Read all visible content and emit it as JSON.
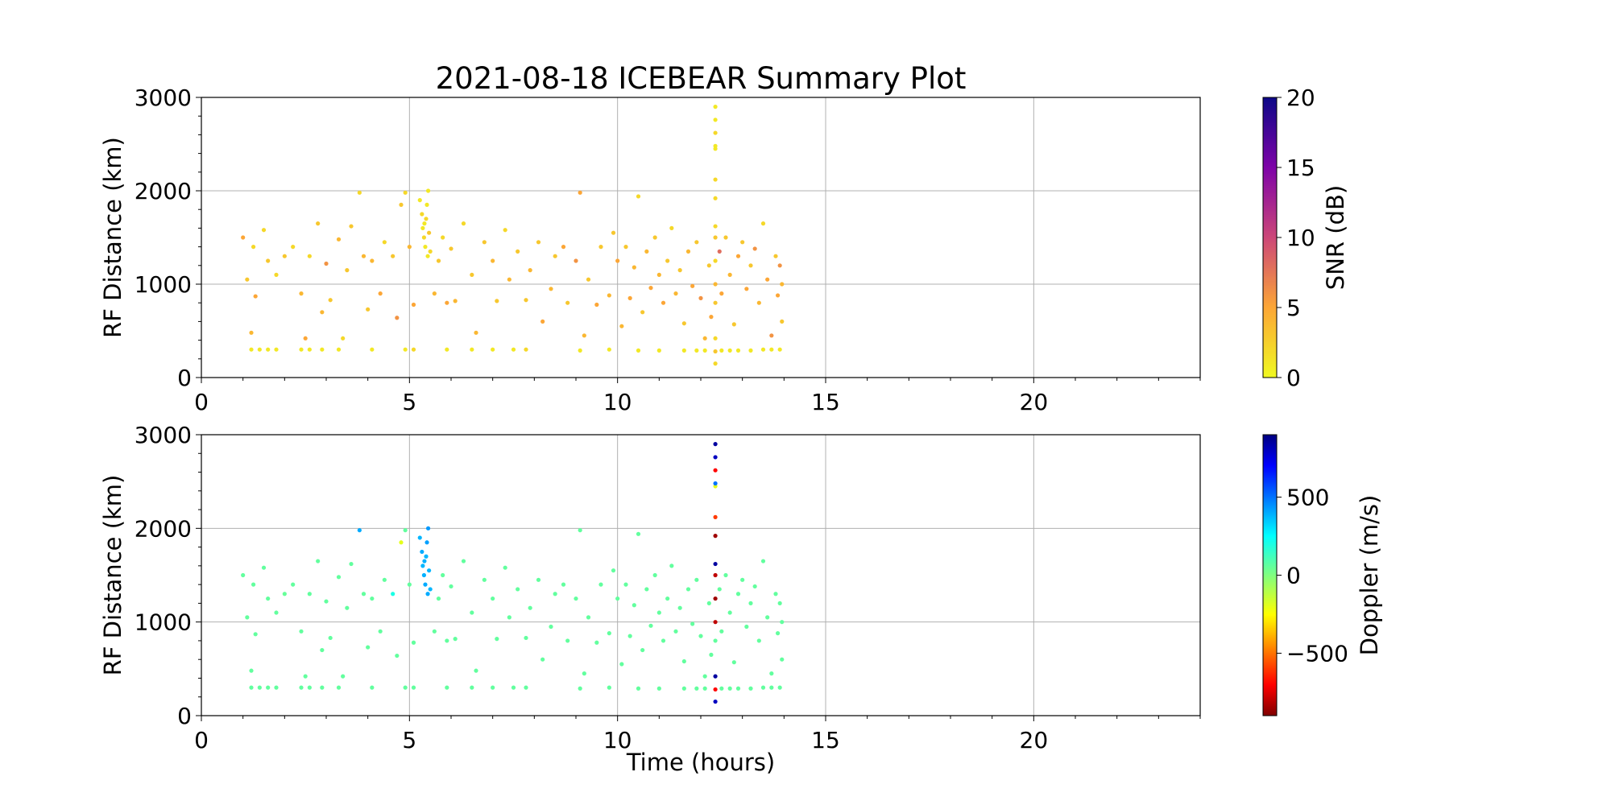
{
  "chart_data": [
    {
      "type": "scatter",
      "title": "2021-08-18 ICEBEAR Summary Plot",
      "xlabel": "",
      "ylabel": "RF Distance (km)",
      "xlim": [
        0,
        24
      ],
      "ylim": [
        0,
        3000
      ],
      "xticks": [
        "0",
        "5",
        "10",
        "15",
        "20"
      ],
      "yticks": [
        "0",
        "1000",
        "2000",
        "3000"
      ],
      "grid": true,
      "color_by": "snr",
      "colormap": "plasma_r",
      "colorbar": {
        "label": "SNR (dB)",
        "range": [
          0,
          20
        ],
        "ticks": [
          "0",
          "5",
          "10",
          "15",
          "20"
        ]
      }
    },
    {
      "type": "scatter",
      "title": "",
      "xlabel": "Time (hours)",
      "ylabel": "RF Distance (km)",
      "xlim": [
        0,
        24
      ],
      "ylim": [
        0,
        3000
      ],
      "xticks": [
        "0",
        "5",
        "10",
        "15",
        "20"
      ],
      "yticks": [
        "0",
        "1000",
        "2000",
        "3000"
      ],
      "grid": true,
      "color_by": "doppler",
      "colormap": "jet",
      "colorbar": {
        "label": "Doppler (m/s)",
        "range": [
          -900,
          900
        ],
        "ticks": [
          "−500",
          "0",
          "500"
        ],
        "tick_values": [
          -500,
          0,
          500
        ]
      }
    }
  ],
  "points_fields": [
    "time_hours",
    "rf_distance_km",
    "snr_db",
    "doppler_ms"
  ],
  "points": [
    [
      1.0,
      1500,
      5,
      60
    ],
    [
      1.1,
      1050,
      3,
      60
    ],
    [
      1.2,
      480,
      4,
      60
    ],
    [
      1.25,
      1400,
      2,
      60
    ],
    [
      1.3,
      870,
      5,
      60
    ],
    [
      1.5,
      1580,
      2,
      60
    ],
    [
      1.6,
      1250,
      3,
      60
    ],
    [
      1.8,
      1100,
      2,
      60
    ],
    [
      2.0,
      1300,
      3,
      50
    ],
    [
      2.2,
      1400,
      2,
      60
    ],
    [
      2.4,
      900,
      4,
      60
    ],
    [
      2.5,
      420,
      5,
      60
    ],
    [
      2.6,
      1300,
      2,
      60
    ],
    [
      2.8,
      1650,
      3,
      60
    ],
    [
      2.9,
      700,
      4,
      60
    ],
    [
      3.0,
      1220,
      6,
      60
    ],
    [
      3.1,
      830,
      3,
      60
    ],
    [
      3.3,
      1480,
      4,
      60
    ],
    [
      3.4,
      420,
      2,
      60
    ],
    [
      3.5,
      1150,
      3,
      60
    ],
    [
      3.6,
      1620,
      3,
      60
    ],
    [
      3.8,
      1980,
      2,
      400
    ],
    [
      3.9,
      1300,
      4,
      60
    ],
    [
      4.0,
      730,
      3,
      60
    ],
    [
      4.1,
      1250,
      4,
      60
    ],
    [
      4.3,
      900,
      5,
      60
    ],
    [
      4.4,
      1450,
      2,
      60
    ],
    [
      4.6,
      1300,
      3,
      200
    ],
    [
      4.7,
      640,
      6,
      60
    ],
    [
      4.8,
      1850,
      3,
      -200
    ],
    [
      4.9,
      1980,
      2,
      60
    ],
    [
      5.0,
      1400,
      4,
      60
    ],
    [
      5.1,
      780,
      5,
      60
    ],
    [
      5.25,
      1900,
      1,
      380
    ],
    [
      5.3,
      1750,
      2,
      400
    ],
    [
      5.32,
      1600,
      1,
      380
    ],
    [
      5.35,
      1500,
      2,
      390
    ],
    [
      5.38,
      1400,
      1,
      400
    ],
    [
      5.4,
      1700,
      2,
      380
    ],
    [
      5.42,
      1850,
      1,
      420
    ],
    [
      5.45,
      2000,
      1,
      430
    ],
    [
      5.47,
      1550,
      3,
      380
    ],
    [
      5.5,
      1350,
      2,
      380
    ],
    [
      5.44,
      1300,
      1,
      400
    ],
    [
      5.36,
      1650,
      1,
      390
    ],
    [
      5.6,
      900,
      4,
      60
    ],
    [
      5.7,
      1250,
      3,
      60
    ],
    [
      5.8,
      1500,
      2,
      60
    ],
    [
      5.9,
      800,
      5,
      60
    ],
    [
      6.0,
      1380,
      3,
      60
    ],
    [
      6.1,
      820,
      4,
      60
    ],
    [
      6.3,
      1650,
      2,
      60
    ],
    [
      6.5,
      1100,
      3,
      60
    ],
    [
      6.6,
      480,
      4,
      60
    ],
    [
      6.8,
      1450,
      3,
      60
    ],
    [
      7.0,
      1250,
      4,
      60
    ],
    [
      7.1,
      820,
      3,
      60
    ],
    [
      7.3,
      1580,
      2,
      60
    ],
    [
      7.4,
      1050,
      4,
      60
    ],
    [
      7.6,
      1350,
      3,
      60
    ],
    [
      7.8,
      830,
      3,
      60
    ],
    [
      7.9,
      1150,
      4,
      60
    ],
    [
      8.1,
      1450,
      3,
      60
    ],
    [
      8.2,
      600,
      5,
      60
    ],
    [
      8.4,
      950,
      4,
      60
    ],
    [
      8.5,
      1300,
      3,
      60
    ],
    [
      8.7,
      1400,
      5,
      60
    ],
    [
      8.8,
      800,
      3,
      60
    ],
    [
      9.0,
      1250,
      6,
      60
    ],
    [
      9.1,
      1980,
      5,
      60
    ],
    [
      9.2,
      450,
      4,
      60
    ],
    [
      9.3,
      1050,
      3,
      60
    ],
    [
      9.5,
      780,
      5,
      60
    ],
    [
      9.6,
      1400,
      3,
      60
    ],
    [
      9.8,
      880,
      4,
      60
    ],
    [
      9.9,
      1550,
      3,
      60
    ],
    [
      10.0,
      1250,
      5,
      60
    ],
    [
      10.1,
      550,
      4,
      60
    ],
    [
      10.2,
      1400,
      3,
      60
    ],
    [
      10.3,
      850,
      5,
      60
    ],
    [
      10.4,
      1180,
      4,
      60
    ],
    [
      10.5,
      1940,
      2,
      60
    ],
    [
      10.6,
      700,
      3,
      60
    ],
    [
      10.7,
      1350,
      4,
      60
    ],
    [
      10.8,
      960,
      5,
      60
    ],
    [
      10.9,
      1500,
      3,
      60
    ],
    [
      11.0,
      1100,
      4,
      60
    ],
    [
      11.1,
      800,
      5,
      60
    ],
    [
      11.2,
      1250,
      3,
      60
    ],
    [
      11.3,
      1600,
      2,
      60
    ],
    [
      11.4,
      900,
      4,
      60
    ],
    [
      11.5,
      1150,
      3,
      60
    ],
    [
      11.6,
      580,
      3,
      60
    ],
    [
      11.7,
      1350,
      4,
      60
    ],
    [
      11.8,
      980,
      5,
      60
    ],
    [
      11.9,
      1450,
      3,
      60
    ],
    [
      12.0,
      850,
      6,
      60
    ],
    [
      12.1,
      420,
      4,
      60
    ],
    [
      12.2,
      1200,
      3,
      60
    ],
    [
      12.25,
      650,
      5,
      60
    ],
    [
      12.35,
      150,
      2,
      800
    ],
    [
      12.35,
      280,
      3,
      -700
    ],
    [
      12.35,
      420,
      2,
      850
    ],
    [
      12.35,
      800,
      3,
      60
    ],
    [
      12.35,
      1000,
      4,
      -800
    ],
    [
      12.35,
      1250,
      2,
      -850
    ],
    [
      12.35,
      1500,
      3,
      -800
    ],
    [
      12.35,
      1620,
      2,
      850
    ],
    [
      12.35,
      1920,
      2,
      -850
    ],
    [
      12.35,
      2120,
      2,
      -600
    ],
    [
      12.35,
      2450,
      1,
      -200
    ],
    [
      12.35,
      2480,
      1,
      500
    ],
    [
      12.35,
      2620,
      2,
      -700
    ],
    [
      12.35,
      2760,
      1,
      800
    ],
    [
      12.35,
      2900,
      1,
      850
    ],
    [
      12.45,
      1350,
      8,
      60
    ],
    [
      12.5,
      900,
      5,
      60
    ],
    [
      12.6,
      1500,
      3,
      60
    ],
    [
      12.7,
      1100,
      4,
      60
    ],
    [
      12.8,
      570,
      3,
      60
    ],
    [
      12.9,
      1300,
      5,
      60
    ],
    [
      13.0,
      1450,
      3,
      60
    ],
    [
      13.1,
      950,
      5,
      60
    ],
    [
      13.2,
      1200,
      3,
      60
    ],
    [
      13.3,
      1380,
      6,
      60
    ],
    [
      13.4,
      800,
      4,
      60
    ],
    [
      13.5,
      1650,
      2,
      60
    ],
    [
      13.6,
      1050,
      5,
      60
    ],
    [
      13.7,
      450,
      6,
      60
    ],
    [
      13.8,
      1300,
      3,
      60
    ],
    [
      13.85,
      880,
      5,
      60
    ],
    [
      13.9,
      1200,
      6,
      60
    ],
    [
      13.95,
      1000,
      4,
      60
    ],
    [
      13.95,
      600,
      3,
      60
    ],
    [
      1.2,
      300,
      1,
      60
    ],
    [
      1.4,
      300,
      1,
      60
    ],
    [
      1.6,
      300,
      1,
      60
    ],
    [
      1.8,
      300,
      1,
      60
    ],
    [
      2.4,
      300,
      1,
      60
    ],
    [
      2.6,
      300,
      1,
      60
    ],
    [
      2.9,
      300,
      1,
      60
    ],
    [
      3.3,
      300,
      1,
      60
    ],
    [
      4.1,
      300,
      1,
      60
    ],
    [
      4.9,
      300,
      1,
      60
    ],
    [
      5.1,
      300,
      2,
      60
    ],
    [
      5.9,
      300,
      1,
      60
    ],
    [
      6.5,
      300,
      1,
      60
    ],
    [
      7.0,
      300,
      1,
      60
    ],
    [
      7.5,
      300,
      1,
      60
    ],
    [
      7.8,
      300,
      2,
      60
    ],
    [
      9.1,
      290,
      1,
      60
    ],
    [
      9.8,
      300,
      1,
      60
    ],
    [
      10.5,
      290,
      1,
      60
    ],
    [
      11.0,
      290,
      1,
      60
    ],
    [
      11.6,
      290,
      1,
      60
    ],
    [
      11.9,
      290,
      1,
      60
    ],
    [
      12.1,
      290,
      1,
      60
    ],
    [
      12.5,
      290,
      1,
      60
    ],
    [
      12.7,
      290,
      1,
      60
    ],
    [
      12.9,
      290,
      1,
      60
    ],
    [
      13.2,
      290,
      1,
      60
    ],
    [
      13.5,
      300,
      1,
      60
    ],
    [
      13.7,
      300,
      1,
      60
    ],
    [
      13.9,
      300,
      1,
      60
    ]
  ]
}
